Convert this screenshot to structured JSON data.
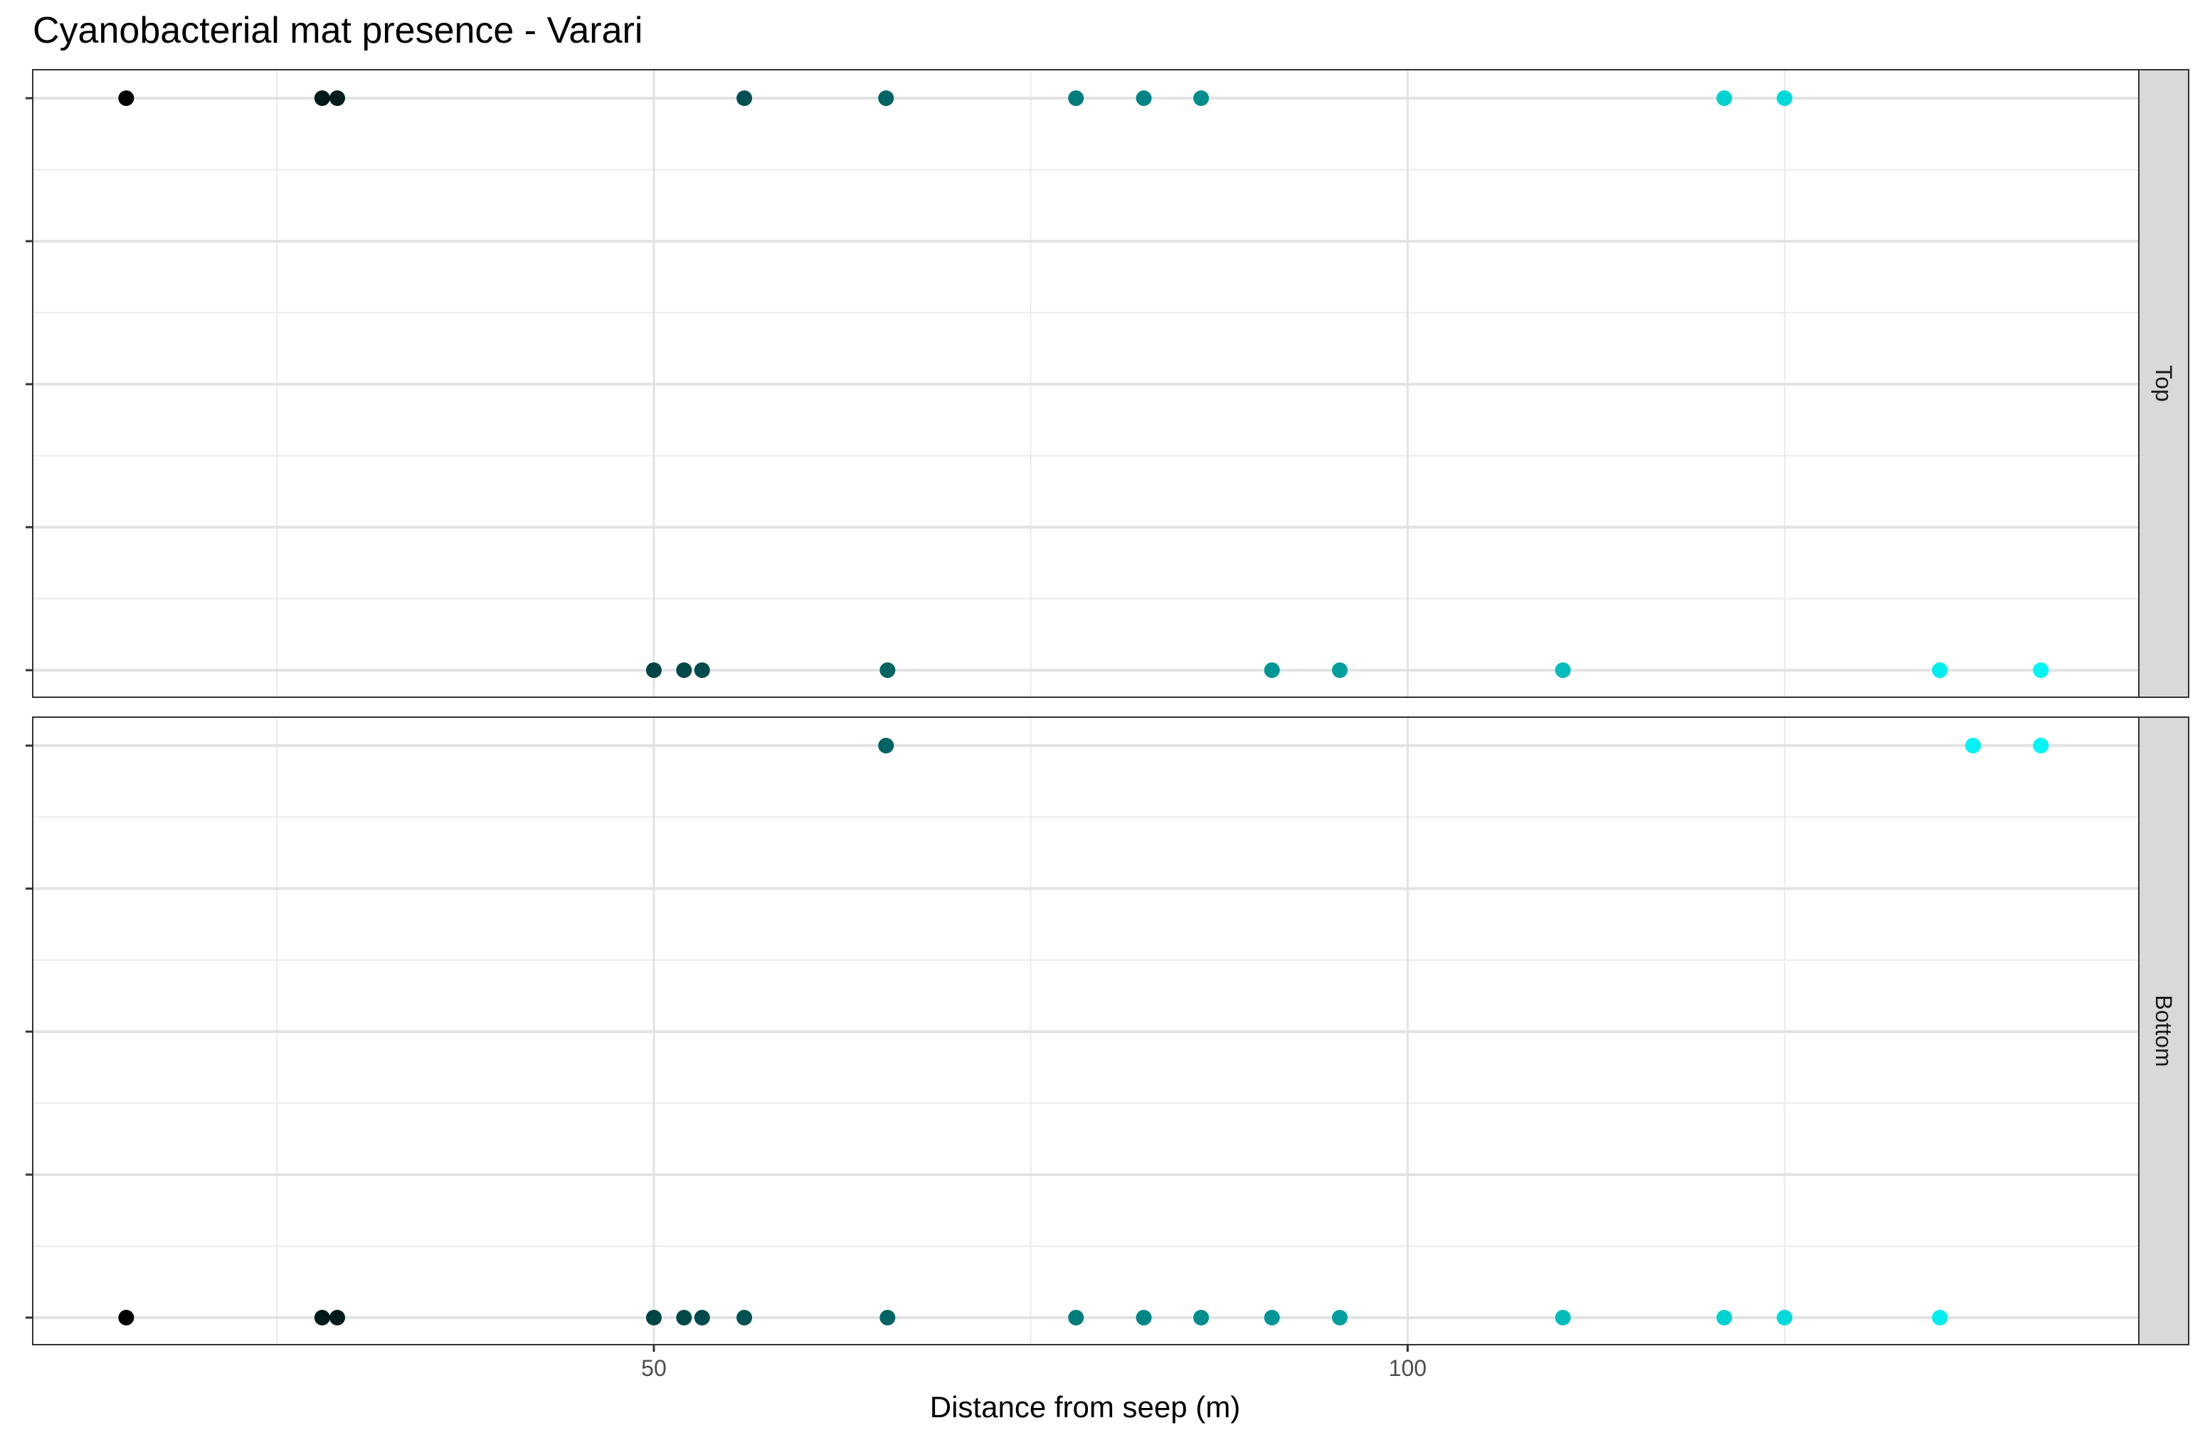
{
  "chart_data": {
    "type": "scatter",
    "title": "Cyanobacterial mat presence - Varari",
    "xlabel": "Distance from seep (m)",
    "ylabel": "",
    "xlim": [
      8.8,
      148.5
    ],
    "x_ticks": [
      50,
      100
    ],
    "x_minor_ticks": [
      25,
      75,
      125
    ],
    "grid": true,
    "color_scale": {
      "low": "#000000",
      "high": "#00f5f5",
      "domain": [
        15,
        139
      ]
    },
    "y_levels": 5,
    "panels": [
      {
        "strip": "Top",
        "points": [
          {
            "x": 15,
            "level": 5
          },
          {
            "x": 28,
            "level": 5
          },
          {
            "x": 29,
            "level": 5
          },
          {
            "x": 56,
            "level": 5
          },
          {
            "x": 65.4,
            "level": 5
          },
          {
            "x": 78,
            "level": 5
          },
          {
            "x": 82.5,
            "level": 5
          },
          {
            "x": 86.3,
            "level": 5
          },
          {
            "x": 121,
            "level": 5
          },
          {
            "x": 125,
            "level": 5
          },
          {
            "x": 50,
            "level": 1
          },
          {
            "x": 52,
            "level": 1
          },
          {
            "x": 53.2,
            "level": 1
          },
          {
            "x": 65.5,
            "level": 1
          },
          {
            "x": 91,
            "level": 1
          },
          {
            "x": 95.5,
            "level": 1
          },
          {
            "x": 110.3,
            "level": 1
          },
          {
            "x": 135.3,
            "level": 1
          },
          {
            "x": 142,
            "level": 1
          }
        ]
      },
      {
        "strip": "Bottom",
        "points": [
          {
            "x": 65.4,
            "level": 5
          },
          {
            "x": 137.5,
            "level": 5
          },
          {
            "x": 142,
            "level": 5
          },
          {
            "x": 15,
            "level": 1
          },
          {
            "x": 28,
            "level": 1
          },
          {
            "x": 29,
            "level": 1
          },
          {
            "x": 50,
            "level": 1
          },
          {
            "x": 52,
            "level": 1
          },
          {
            "x": 53.2,
            "level": 1
          },
          {
            "x": 56,
            "level": 1
          },
          {
            "x": 65.5,
            "level": 1
          },
          {
            "x": 78,
            "level": 1
          },
          {
            "x": 82.5,
            "level": 1
          },
          {
            "x": 86.3,
            "level": 1
          },
          {
            "x": 91,
            "level": 1
          },
          {
            "x": 95.5,
            "level": 1
          },
          {
            "x": 110.3,
            "level": 1
          },
          {
            "x": 121,
            "level": 1
          },
          {
            "x": 125,
            "level": 1
          },
          {
            "x": 135.3,
            "level": 1
          }
        ]
      }
    ]
  }
}
